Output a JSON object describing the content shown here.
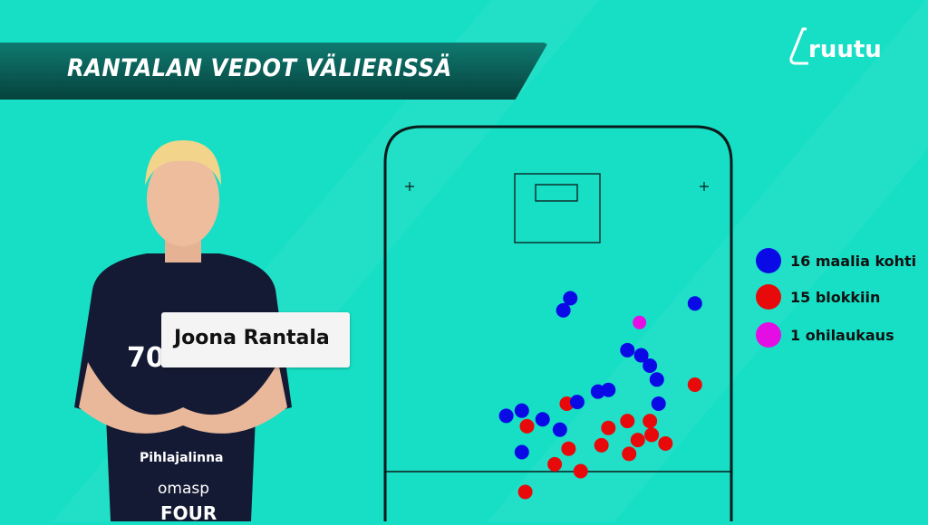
{
  "title": "RANTALAN VEDOT VÄLIERISSÄ",
  "logo": "ruutu",
  "player": {
    "name": "Joona Rantala",
    "jersey_number": "70",
    "sponsor_texts": [
      "Pihlajalinna",
      "omasp",
      "FOUR"
    ]
  },
  "chart_data": {
    "type": "scatter",
    "title": "RANTALAN VEDOT VÄLIERISSÄ",
    "background": "floorball rink (half), goal at top",
    "legend_placement": "right",
    "series": [
      {
        "name": "16 maalia kohti",
        "color": "#0a0ae6",
        "points": [
          [
            0.8,
            7.2
          ],
          [
            0.4,
            7.9
          ],
          [
            8.0,
            7.5
          ],
          [
            4.1,
            10.2
          ],
          [
            4.9,
            10.5
          ],
          [
            5.4,
            11.1
          ],
          [
            5.8,
            11.9
          ],
          [
            2.4,
            12.6
          ],
          [
            3.0,
            12.5
          ],
          [
            1.2,
            13.2
          ],
          [
            -2.9,
            14.0
          ],
          [
            -2.0,
            13.7
          ],
          [
            -0.8,
            14.2
          ],
          [
            0.2,
            14.8
          ],
          [
            5.9,
            13.3
          ],
          [
            -2.0,
            16.1
          ]
        ]
      },
      {
        "name": "15 blokkiin",
        "color": "#e80a0a",
        "points": [
          [
            0.6,
            13.3
          ],
          [
            -1.7,
            14.6
          ],
          [
            8.0,
            12.2
          ],
          [
            3.0,
            14.7
          ],
          [
            4.1,
            14.3
          ],
          [
            5.4,
            14.3
          ],
          [
            5.5,
            15.1
          ],
          [
            4.7,
            15.4
          ],
          [
            6.3,
            15.6
          ],
          [
            2.6,
            15.7
          ],
          [
            0.7,
            15.9
          ],
          [
            4.2,
            16.2
          ],
          [
            -0.1,
            16.8
          ],
          [
            1.4,
            17.2
          ],
          [
            -1.8,
            18.4
          ]
        ]
      },
      {
        "name": "1 ohilaukaus",
        "color": "#e40ee4",
        "points": [
          [
            4.8,
            8.6
          ]
        ]
      }
    ]
  }
}
